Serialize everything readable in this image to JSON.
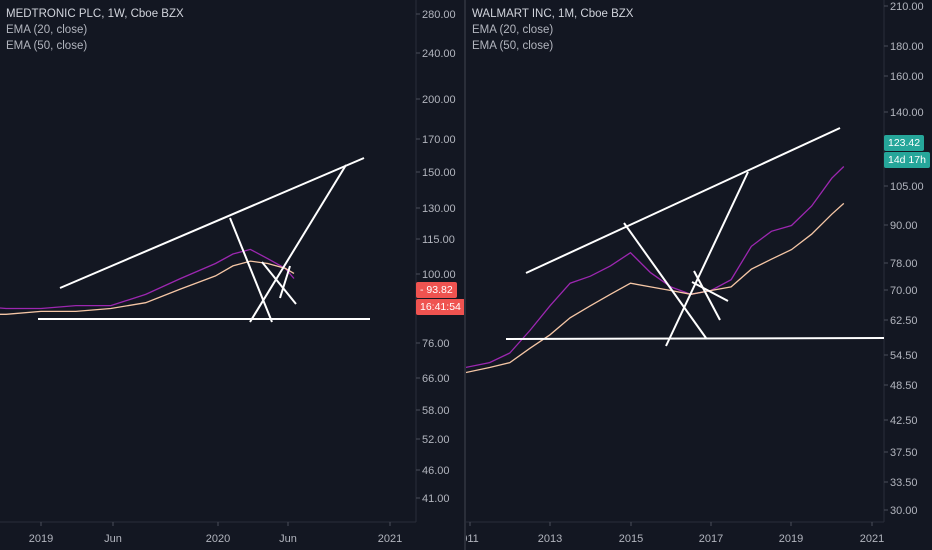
{
  "colors": {
    "background": "#131722",
    "axis_text": "#b2b5be",
    "ema20": "#9c27b0",
    "ema50": "#f5c6a5",
    "drawing": "#ffffff",
    "left_tag": "#ef5350",
    "right_tag": "#26a69a"
  },
  "left": {
    "legend": {
      "title": "MEDTRONIC PLC, 1W, Cboe BZX",
      "ema20": "EMA (20, close)",
      "ema50": "EMA (50, close)"
    },
    "price_tag": {
      "price": "93.82",
      "countdown": "16:41:54"
    },
    "y_ticks": [
      "280.00",
      "240.00",
      "200.00",
      "170.00",
      "150.00",
      "130.00",
      "115.00",
      "100.00",
      "76.00",
      "66.00",
      "58.00",
      "52.00",
      "46.00",
      "41.00"
    ],
    "x_ticks": [
      "2019",
      "Jun",
      "2020",
      "Jun",
      "2021"
    ]
  },
  "right": {
    "legend": {
      "title": "WALMART INC, 1M, Cboe BZX",
      "ema20": "EMA (20, close)",
      "ema50": "EMA (50, close)"
    },
    "price_tag": {
      "price": "123.42",
      "countdown": "14d 17h"
    },
    "y_ticks": [
      "210.00",
      "180.00",
      "160.00",
      "140.00",
      "105.00",
      "90.00",
      "78.00",
      "70.00",
      "62.50",
      "54.50",
      "48.50",
      "42.50",
      "37.50",
      "33.50",
      "30.00"
    ],
    "x_ticks": [
      "011",
      "2013",
      "2015",
      "2017",
      "2019",
      "2021"
    ]
  },
  "chart_data": [
    {
      "type": "line",
      "title": "MEDTRONIC PLC, 1W, Cboe BZX",
      "x_ticks": [
        "2019",
        "Jun",
        "2020",
        "Jun",
        "2021"
      ],
      "y_scale": "log",
      "ylim": [
        38,
        320
      ],
      "series": [
        {
          "name": "EMA (20, close)",
          "x": [
            2018.6,
            2018.8,
            2019.0,
            2019.2,
            2019.4,
            2019.6,
            2019.8,
            2020.0,
            2020.1,
            2020.2,
            2020.3,
            2020.4,
            2020.45
          ],
          "values": [
            88,
            87,
            87,
            88,
            88,
            92,
            98,
            104,
            108,
            110,
            106,
            102,
            98
          ]
        },
        {
          "name": "EMA (50, close)",
          "x": [
            2018.6,
            2018.8,
            2019.0,
            2019.2,
            2019.4,
            2019.6,
            2019.8,
            2020.0,
            2020.1,
            2020.2,
            2020.3,
            2020.4,
            2020.45
          ],
          "values": [
            85,
            85,
            86,
            86,
            87,
            89,
            94,
            99,
            103,
            105,
            104,
            102,
            100
          ]
        }
      ]
    },
    {
      "type": "line",
      "title": "WALMART INC, 1M, Cboe BZX",
      "x_ticks": [
        "011",
        "2013",
        "2015",
        "2017",
        "2019",
        "2021"
      ],
      "y_scale": "log",
      "ylim": [
        29,
        215
      ],
      "series": [
        {
          "name": "EMA (20, close)",
          "x": [
            2010.9,
            2011.5,
            2012.0,
            2012.5,
            2013.0,
            2013.5,
            2014.0,
            2014.5,
            2015.0,
            2015.5,
            2016.0,
            2016.5,
            2017.0,
            2017.5,
            2018.0,
            2018.5,
            2019.0,
            2019.5,
            2020.0,
            2020.3
          ],
          "values": [
            52,
            53,
            55,
            60,
            66,
            72,
            74,
            77,
            81,
            75,
            71,
            69,
            70,
            73,
            83,
            88,
            90,
            97,
            108,
            113
          ]
        },
        {
          "name": "EMA (50, close)",
          "x": [
            2010.9,
            2011.5,
            2012.0,
            2012.5,
            2013.0,
            2013.5,
            2014.0,
            2014.5,
            2015.0,
            2015.5,
            2016.0,
            2016.5,
            2017.0,
            2017.5,
            2018.0,
            2018.5,
            2019.0,
            2019.5,
            2020.0,
            2020.3
          ],
          "values": [
            51,
            52,
            53,
            56,
            59,
            63,
            66,
            69,
            72,
            71,
            70,
            69,
            70,
            71,
            76,
            79,
            82,
            87,
            94,
            98
          ]
        }
      ]
    }
  ]
}
